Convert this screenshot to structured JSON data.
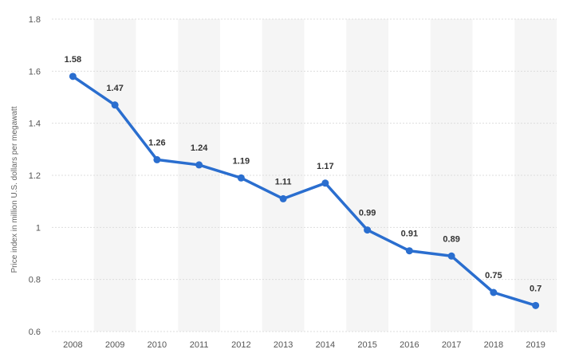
{
  "chart_data": {
    "type": "line",
    "title": "",
    "xlabel": "",
    "ylabel": "Price index in million U.S. dollars per megawatt",
    "categories": [
      "2008",
      "2009",
      "2010",
      "2011",
      "2012",
      "2013",
      "2014",
      "2015",
      "2016",
      "2017",
      "2018",
      "2019"
    ],
    "series": [
      {
        "values": [
          1.58,
          1.47,
          1.26,
          1.24,
          1.19,
          1.11,
          1.17,
          0.99,
          0.91,
          0.89,
          0.75,
          0.7
        ]
      }
    ],
    "data_labels": [
      "1.58",
      "1.47",
      "1.26",
      "1.24",
      "1.19",
      "1.11",
      "1.17",
      "0.99",
      "0.91",
      "0.89",
      "0.75",
      "0.7"
    ],
    "ylim": [
      0.6,
      1.8
    ],
    "yticks": [
      0.6,
      0.8,
      1,
      1.2,
      1.4,
      1.6,
      1.8
    ],
    "ytick_labels": [
      "0.6",
      "0.8",
      "1",
      "1.2",
      "1.4",
      "1.6",
      "1.8"
    ],
    "grid": true,
    "alternating_column_bands": true,
    "line_color": "#2a6ecf",
    "band_color": "#f5f5f5",
    "grid_color": "#dddddd"
  }
}
